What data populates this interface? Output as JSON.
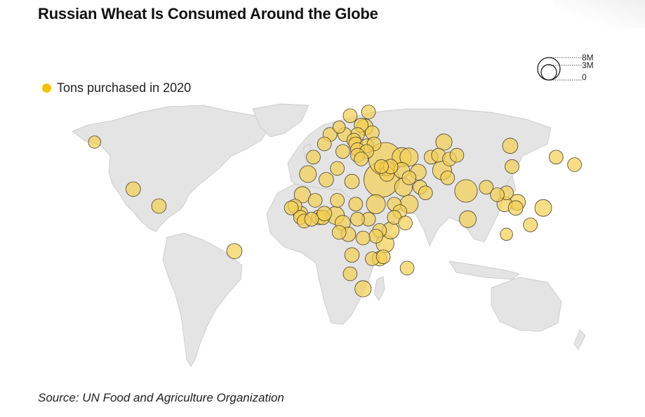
{
  "title": "Russian Wheat Is Consumed Around the Globe",
  "legend": {
    "label": "Tons purchased in 2020",
    "color": "#f2c200"
  },
  "size_key": {
    "labels": [
      "8M",
      "3M",
      "0"
    ]
  },
  "source": "Source: UN Food and Agriculture Organization",
  "colors": {
    "land": "#e4e4e4",
    "bubble_fill": "#f4cf52",
    "bubble_stroke": "#4a4030"
  },
  "map_data": {
    "markers": [
      {
        "lon": 33,
        "lat": 28,
        "tons_m": 8.2,
        "country": "Egypt"
      },
      {
        "lon": 35,
        "lat": 39,
        "tons_m": 7.0,
        "country": "Turkey"
      },
      {
        "lon": 44,
        "lat": 40,
        "tons_m": 1.5,
        "country": "Armenia"
      },
      {
        "lon": 48,
        "lat": 40,
        "tons_m": 1.3,
        "country": "Azerbaijan"
      },
      {
        "lon": 44,
        "lat": 33,
        "tons_m": 0.8,
        "country": "Iraq"
      },
      {
        "lon": 53,
        "lat": 32,
        "tons_m": 0.8,
        "country": "Iran"
      },
      {
        "lon": 45,
        "lat": 24,
        "tons_m": 1.2,
        "country": "Saudi Arabia"
      },
      {
        "lon": 48,
        "lat": 15,
        "tons_m": 1.3,
        "country": "Yemen"
      },
      {
        "lon": 36,
        "lat": 34,
        "tons_m": 0.6,
        "country": "Lebanon"
      },
      {
        "lon": 36,
        "lat": 31,
        "tons_m": 0.6,
        "country": "Israel"
      },
      {
        "lon": 38,
        "lat": 35,
        "tons_m": 0.6,
        "country": "Syria"
      },
      {
        "lon": 54,
        "lat": 24,
        "tons_m": 0.5,
        "country": "UAE"
      },
      {
        "lon": 57,
        "lat": 21,
        "tons_m": 0.5,
        "country": "Oman"
      },
      {
        "lon": 48,
        "lat": 29,
        "tons_m": 0.5,
        "country": "Kuwait"
      },
      {
        "lon": 60,
        "lat": 40,
        "tons_m": 0.5,
        "country": "Turkmenistan"
      },
      {
        "lon": 64,
        "lat": 41,
        "tons_m": 0.5,
        "country": "Uzbekistan"
      },
      {
        "lon": 70,
        "lat": 39,
        "tons_m": 0.5,
        "country": "Tajikistan"
      },
      {
        "lon": 74,
        "lat": 41,
        "tons_m": 0.5,
        "country": "Kyrgyzstan"
      },
      {
        "lon": 67,
        "lat": 48,
        "tons_m": 0.9,
        "country": "Kazakhstan"
      },
      {
        "lon": 66,
        "lat": 33,
        "tons_m": 1.5,
        "country": "Afghanistan"
      },
      {
        "lon": 69,
        "lat": 29,
        "tons_m": 0.5,
        "country": "Pakistan"
      },
      {
        "lon": 79,
        "lat": 22,
        "tons_m": 2.5,
        "country": "India"
      },
      {
        "lon": 80,
        "lat": 7,
        "tons_m": 1.0,
        "country": "Sri Lanka"
      },
      {
        "lon": 90,
        "lat": 24,
        "tons_m": 0.5,
        "country": "Bangladesh"
      },
      {
        "lon": 103,
        "lat": 46,
        "tons_m": 0.7,
        "country": "Mongolia"
      },
      {
        "lon": 104,
        "lat": 35,
        "tons_m": 0.5,
        "country": "China"
      },
      {
        "lon": 128,
        "lat": 40,
        "tons_m": 0.5,
        "country": "North Korea"
      },
      {
        "lon": 138,
        "lat": 36,
        "tons_m": 0.5,
        "country": "Japan"
      },
      {
        "lon": 101,
        "lat": 21,
        "tons_m": 0.5,
        "country": "Laos"
      },
      {
        "lon": 96,
        "lat": 20,
        "tons_m": 0.5,
        "country": "Myanmar"
      },
      {
        "lon": 100,
        "lat": 15,
        "tons_m": 0.7,
        "country": "Thailand"
      },
      {
        "lon": 106,
        "lat": 13,
        "tons_m": 0.6,
        "country": "Cambodia"
      },
      {
        "lon": 107,
        "lat": 16,
        "tons_m": 0.8,
        "country": "Vietnam"
      },
      {
        "lon": 121,
        "lat": 13,
        "tons_m": 1.0,
        "country": "Philippines"
      },
      {
        "lon": 114,
        "lat": 4,
        "tons_m": 0.5,
        "country": "Malaysia"
      },
      {
        "lon": 101,
        "lat": -1,
        "tons_m": 0.3,
        "country": "Indonesia"
      },
      {
        "lon": 26,
        "lat": 64,
        "tons_m": 0.5,
        "country": "Finland"
      },
      {
        "lon": 16,
        "lat": 62,
        "tons_m": 0.5,
        "country": "Sweden"
      },
      {
        "lon": 22,
        "lat": 57,
        "tons_m": 0.5,
        "country": "Baltics"
      },
      {
        "lon": 24,
        "lat": 56,
        "tons_m": 0.9,
        "country": "Latvia"
      },
      {
        "lon": 10,
        "lat": 56,
        "tons_m": 0.3,
        "country": "Denmark"
      },
      {
        "lon": 20,
        "lat": 52,
        "tons_m": 0.5,
        "country": "Poland"
      },
      {
        "lon": 28,
        "lat": 53,
        "tons_m": 0.5,
        "country": "Belarus"
      },
      {
        "lon": 13,
        "lat": 52,
        "tons_m": 0.5,
        "country": "Germany"
      },
      {
        "lon": 5,
        "lat": 52,
        "tons_m": 0.5,
        "country": "Netherlands"
      },
      {
        "lon": 2,
        "lat": 47,
        "tons_m": 0.5,
        "country": "France"
      },
      {
        "lon": 18,
        "lat": 49,
        "tons_m": 0.5,
        "country": "Czechia"
      },
      {
        "lon": 19,
        "lat": 47,
        "tons_m": 0.5,
        "country": "Hungary"
      },
      {
        "lon": 25,
        "lat": 46,
        "tons_m": 0.5,
        "country": "Romania"
      },
      {
        "lon": 29,
        "lat": 47,
        "tons_m": 0.5,
        "country": "Moldova"
      },
      {
        "lon": 20,
        "lat": 44,
        "tons_m": 0.5,
        "country": "Serbia"
      },
      {
        "lon": 25,
        "lat": 43,
        "tons_m": 0.5,
        "country": "Bulgaria"
      },
      {
        "lon": 20,
        "lat": 41,
        "tons_m": 0.5,
        "country": "Albania"
      },
      {
        "lon": 22,
        "lat": 39,
        "tons_m": 0.5,
        "country": "Greece"
      },
      {
        "lon": 12,
        "lat": 43,
        "tons_m": 0.5,
        "country": "Italy"
      },
      {
        "lon": -4,
        "lat": 40,
        "tons_m": 0.5,
        "country": "Spain"
      },
      {
        "lon": 33,
        "lat": 35,
        "tons_m": 0.5,
        "country": "Cyprus"
      },
      {
        "lon": 3,
        "lat": 28,
        "tons_m": 0.6,
        "country": "Algeria"
      },
      {
        "lon": 9,
        "lat": 34,
        "tons_m": 0.5,
        "country": "Tunisia"
      },
      {
        "lon": 17,
        "lat": 27,
        "tons_m": 0.6,
        "country": "Libya"
      },
      {
        "lon": -7,
        "lat": 31,
        "tons_m": 1.0,
        "country": "Morocco"
      },
      {
        "lon": 30,
        "lat": 15,
        "tons_m": 1.5,
        "country": "Sudan"
      },
      {
        "lon": 40,
        "lat": 15,
        "tons_m": 0.5,
        "country": "Eritrea"
      },
      {
        "lon": 43,
        "lat": 11,
        "tons_m": 0.5,
        "country": "Djibouti"
      },
      {
        "lon": 40,
        "lat": 8,
        "tons_m": 0.5,
        "country": "Ethiopia"
      },
      {
        "lon": 46,
        "lat": 5,
        "tons_m": 0.5,
        "country": "Somalia"
      },
      {
        "lon": 38,
        "lat": 1,
        "tons_m": 1.0,
        "country": "Kenya"
      },
      {
        "lon": 32,
        "lat": 1,
        "tons_m": 0.5,
        "country": "Uganda"
      },
      {
        "lon": 30,
        "lat": -2,
        "tons_m": 0.5,
        "country": "Rwanda"
      },
      {
        "lon": 35,
        "lat": -6,
        "tons_m": 1.2,
        "country": "Tanzania"
      },
      {
        "lon": 26,
        "lat": 7,
        "tons_m": 0.5,
        "country": "South Sudan"
      },
      {
        "lon": 19,
        "lat": 15,
        "tons_m": 0.5,
        "country": "Chad"
      },
      {
        "lon": 20,
        "lat": 7,
        "tons_m": 0.5,
        "country": "CAR"
      },
      {
        "lon": 8,
        "lat": 9,
        "tons_m": 1.2,
        "country": "Nigeria"
      },
      {
        "lon": 9,
        "lat": 17,
        "tons_m": 0.5,
        "country": "Niger"
      },
      {
        "lon": -3,
        "lat": 17,
        "tons_m": 0.5,
        "country": "Mali"
      },
      {
        "lon": -10,
        "lat": 20,
        "tons_m": 0.9,
        "country": "Mauritania"
      },
      {
        "lon": -14,
        "lat": 14,
        "tons_m": 0.5,
        "country": "Senegal"
      },
      {
        "lon": -16,
        "lat": 13,
        "tons_m": 0.5,
        "country": "Gambia"
      },
      {
        "lon": -11,
        "lat": 10,
        "tons_m": 0.6,
        "country": "Guinea"
      },
      {
        "lon": -11,
        "lat": 8,
        "tons_m": 0.5,
        "country": "Sierra Leone"
      },
      {
        "lon": -9,
        "lat": 6,
        "tons_m": 0.5,
        "country": "Liberia"
      },
      {
        "lon": -5,
        "lat": 7,
        "tons_m": 0.5,
        "country": "Ivory Coast"
      },
      {
        "lon": -1,
        "lat": 8,
        "tons_m": 0.6,
        "country": "Ghana"
      },
      {
        "lon": 1,
        "lat": 8,
        "tons_m": 0.6,
        "country": "Togo"
      },
      {
        "lon": 2,
        "lat": 10,
        "tons_m": 0.6,
        "country": "Benin"
      },
      {
        "lon": 12,
        "lat": 5,
        "tons_m": 0.7,
        "country": "Cameroon"
      },
      {
        "lon": 10,
        "lat": 0,
        "tons_m": 0.5,
        "country": "Gabon"
      },
      {
        "lon": 15,
        "lat": -1,
        "tons_m": 0.6,
        "country": "Congo"
      },
      {
        "lon": 23,
        "lat": -3,
        "tons_m": 0.5,
        "country": "DR Congo"
      },
      {
        "lon": 17,
        "lat": -12,
        "tons_m": 0.6,
        "country": "Angola"
      },
      {
        "lon": 28,
        "lat": -14,
        "tons_m": 0.5,
        "country": "Zambia"
      },
      {
        "lon": 34,
        "lat": -13,
        "tons_m": 0.5,
        "country": "Malawi"
      },
      {
        "lon": 32,
        "lat": -14,
        "tons_m": 0.6,
        "country": "Mozambique"
      },
      {
        "lon": 47,
        "lat": -19,
        "tons_m": 0.5,
        "country": "Madagascar"
      },
      {
        "lon": 16,
        "lat": -22,
        "tons_m": 0.5,
        "country": "Namibia"
      },
      {
        "lon": 23,
        "lat": -30,
        "tons_m": 0.9,
        "country": "South Africa"
      },
      {
        "lon": -47,
        "lat": -10,
        "tons_m": 0.7,
        "country": "Brazil"
      },
      {
        "lon": -102,
        "lat": 23,
        "tons_m": 0.6,
        "country": "Mexico"
      },
      {
        "lon": -88,
        "lat": 14,
        "tons_m": 0.6,
        "country": "Central America"
      },
      {
        "lon": -123,
        "lat": 48,
        "tons_m": 0.3,
        "country": "Canada"
      }
    ]
  }
}
